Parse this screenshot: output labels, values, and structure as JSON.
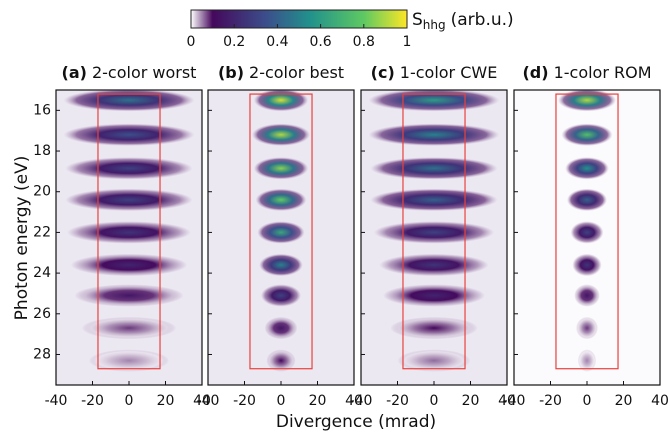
{
  "colorbar": {
    "label": "S",
    "label_sub": "hhg",
    "label_unit": "(arb.u.)",
    "lim": [
      0,
      1
    ],
    "ticks": [
      0,
      0.2,
      0.4,
      0.6,
      0.8,
      1
    ],
    "colors": [
      "#ffffff",
      "#45085c",
      "#3b4f8c",
      "#21918c",
      "#5ec962",
      "#fde725"
    ],
    "stops": [
      0,
      0.1,
      0.35,
      0.55,
      0.8,
      1
    ]
  },
  "x_label": "Divergence (mrad)",
  "y_label": "Photon energy (eV)",
  "chart_data": [
    {
      "type": "heatmap",
      "title_tag": "(a)",
      "title": "2-color worst",
      "background": "#ece8f2",
      "energies": [
        15.5,
        17.2,
        18.85,
        20.4,
        22.0,
        23.6,
        25.1,
        26.7,
        28.3
      ],
      "divergence": [
        36,
        36,
        35,
        35,
        34,
        32,
        30,
        26,
        22
      ],
      "intensity": [
        0.45,
        0.35,
        0.3,
        0.3,
        0.25,
        0.2,
        0.15,
        0.08,
        0.05
      ],
      "xlim": [
        -40,
        40
      ],
      "xticks": [
        -40,
        -20,
        0,
        20,
        40
      ],
      "ylim": [
        15,
        29.5
      ],
      "yticks": [
        16,
        18,
        20,
        22,
        24,
        26,
        28
      ],
      "roi": {
        "x": [
          -17,
          17
        ],
        "y": [
          15.2,
          28.7
        ],
        "color": "#e8413c"
      }
    },
    {
      "type": "heatmap",
      "title_tag": "(b)",
      "title": "2-color best",
      "background": "#ece8f2",
      "energies": [
        15.5,
        17.2,
        18.85,
        20.4,
        22.0,
        23.6,
        25.1,
        26.7,
        28.3
      ],
      "divergence": [
        15,
        16,
        15,
        14,
        13,
        12,
        11,
        9,
        8
      ],
      "intensity": [
        0.95,
        0.9,
        0.85,
        0.8,
        0.65,
        0.5,
        0.3,
        0.15,
        0.1
      ],
      "xlim": [
        -40,
        40
      ],
      "xticks": [
        -40,
        -20,
        0,
        20,
        40
      ],
      "ylim": [
        15,
        29.5
      ],
      "yticks": [
        16,
        18,
        20,
        22,
        24,
        26,
        28
      ],
      "roi": {
        "x": [
          -17,
          17
        ],
        "y": [
          15.2,
          28.7
        ],
        "color": "#e8413c"
      }
    },
    {
      "type": "heatmap",
      "title_tag": "(c)",
      "title": "1-color CWE",
      "background": "#ece8f2",
      "energies": [
        15.5,
        17.2,
        18.85,
        20.4,
        22.0,
        23.6,
        25.1,
        26.7,
        28.3
      ],
      "divergence": [
        36,
        36,
        35,
        35,
        33,
        30,
        28,
        24,
        20
      ],
      "intensity": [
        0.6,
        0.5,
        0.45,
        0.4,
        0.3,
        0.25,
        0.2,
        0.1,
        0.06
      ],
      "xlim": [
        -40,
        40
      ],
      "xticks": [
        -40,
        -20,
        0,
        20,
        40
      ],
      "ylim": [
        15,
        29.5
      ],
      "yticks": [
        16,
        18,
        20,
        22,
        24,
        26,
        28
      ],
      "roi": {
        "x": [
          -17,
          17
        ],
        "y": [
          15.2,
          28.7
        ],
        "color": "#e8413c"
      }
    },
    {
      "type": "heatmap",
      "title_tag": "(d)",
      "title": "1-color ROM",
      "background": "#fbfafc",
      "energies": [
        15.5,
        17.2,
        18.85,
        20.4,
        22.0,
        23.6,
        25.1,
        26.7,
        28.3
      ],
      "divergence": [
        16,
        14,
        12,
        11,
        9,
        8,
        7,
        6,
        5
      ],
      "intensity": [
        0.9,
        0.75,
        0.55,
        0.4,
        0.3,
        0.25,
        0.15,
        0.08,
        0.05
      ],
      "xlim": [
        -40,
        40
      ],
      "xticks": [
        -40,
        -20,
        0,
        20,
        40
      ],
      "ylim": [
        15,
        29.5
      ],
      "yticks": [
        16,
        18,
        20,
        22,
        24,
        26,
        28
      ],
      "roi": {
        "x": [
          -17,
          17
        ],
        "y": [
          15.2,
          28.7
        ],
        "color": "#e8413c"
      }
    }
  ]
}
